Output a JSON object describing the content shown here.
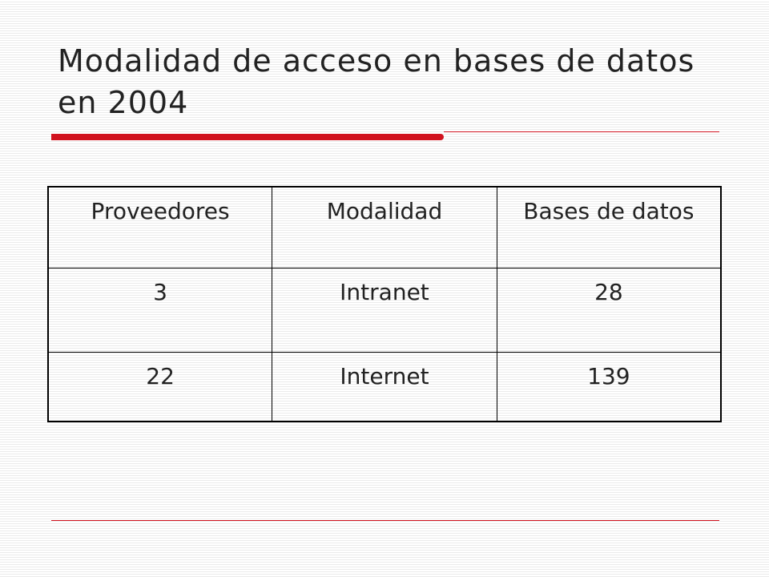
{
  "slide": {
    "title": "Modalidad de acceso en bases de datos en 2004",
    "accent_color": "#d1131f"
  },
  "table": {
    "headers": [
      "Proveedores",
      "Modalidad",
      "Bases de datos"
    ],
    "rows": [
      [
        "3",
        "Intranet",
        "28"
      ],
      [
        "22",
        "Internet",
        "139"
      ]
    ]
  }
}
